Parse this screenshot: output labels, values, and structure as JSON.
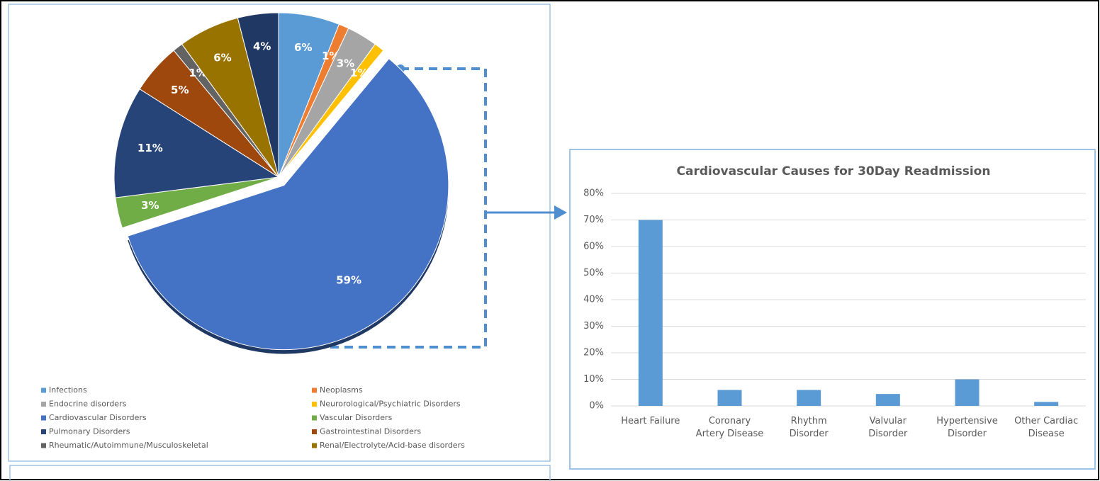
{
  "chart_data": [
    {
      "type": "pie",
      "categories": [
        "Infections",
        "Neoplasms",
        "Endocrine disorders",
        "Neurorological/Psychiatric Disorders",
        "Cardiovascular Disorders",
        "Vascular Disorders",
        "Pulmonary Disorders",
        "Gastrointestinal Disorders",
        "Rheumatic/Autoimmune/Musculoskeletal",
        "Renal/Electrolyte/Acid-base disorders",
        null
      ],
      "values": [
        6,
        1,
        3,
        1,
        59,
        3,
        11,
        5,
        1,
        6,
        4
      ],
      "value_labels": [
        "6%",
        "1%",
        "3%",
        "1%",
        "59%",
        "3%",
        "11%",
        "5%",
        "1%",
        "6%",
        "4%"
      ],
      "colors": [
        "#5b9bd5",
        "#ed7d31",
        "#a5a5a5",
        "#ffc000",
        "#4472c4",
        "#70ad47",
        "#264478",
        "#9e480e",
        "#636363",
        "#997300",
        "#1f3864"
      ]
    },
    {
      "type": "bar",
      "title": "Cardiovascular Causes for 30Day Readmission",
      "categories": [
        "Heart Failure",
        "Coronary Artery Disease",
        "Rhythm Disorder",
        "Valvular Disorder",
        "Hypertensive Disorder",
        "Other Cardiac Disease"
      ],
      "values": [
        70,
        6,
        6,
        4.5,
        10,
        1.5
      ],
      "color": "#5b9bd5",
      "ylim": [
        0,
        80
      ],
      "yticks": [
        {
          "value": 0,
          "label": "0%"
        },
        {
          "value": 10,
          "label": "10%"
        },
        {
          "value": 20,
          "label": "20%"
        },
        {
          "value": 30,
          "label": "30%"
        },
        {
          "value": 40,
          "label": "40%"
        },
        {
          "value": 50,
          "label": "50%"
        },
        {
          "value": 60,
          "label": "60%"
        },
        {
          "value": 70,
          "label": "70%"
        },
        {
          "value": 80,
          "label": "80%"
        }
      ],
      "grid": true
    }
  ]
}
